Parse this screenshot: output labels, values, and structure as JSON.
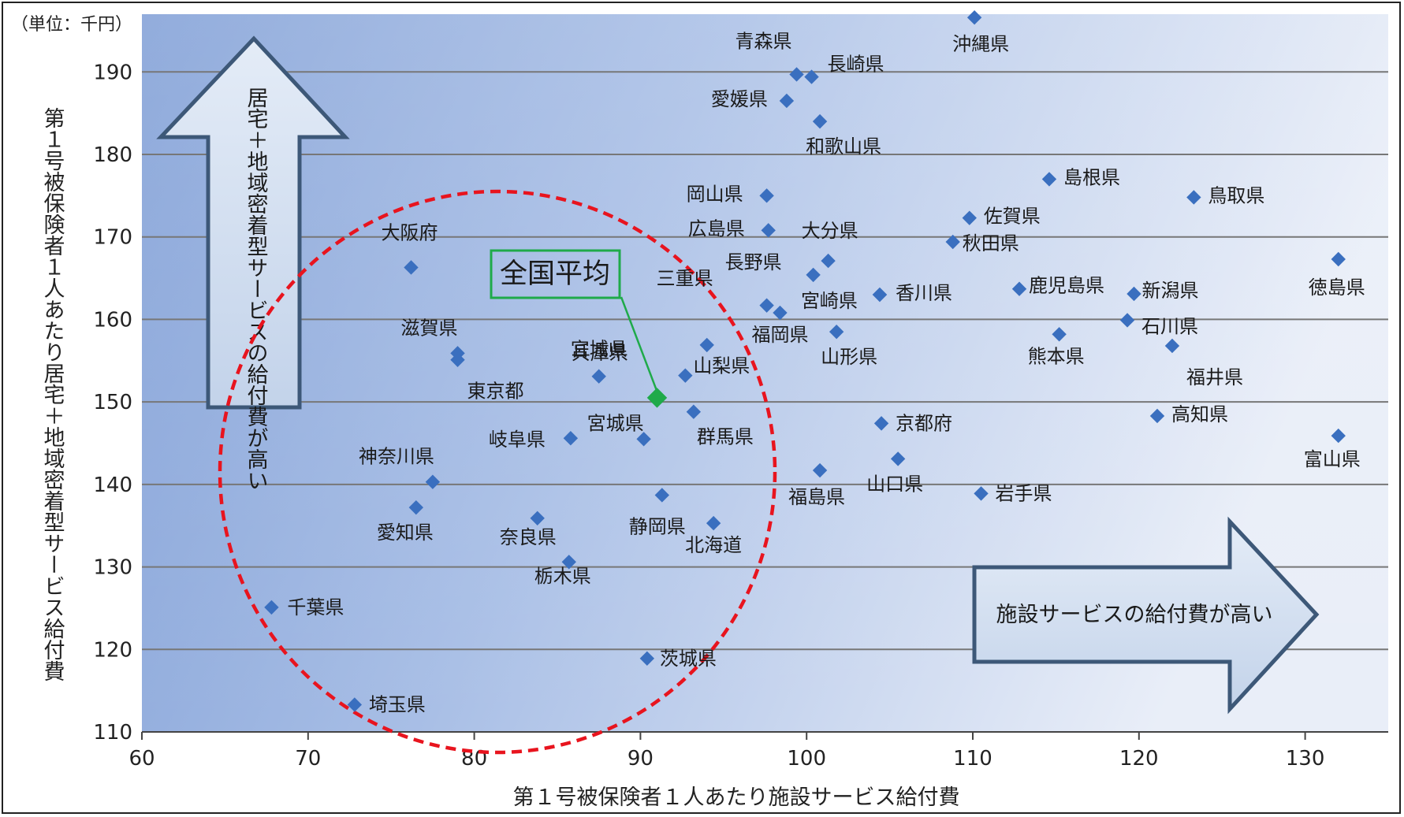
{
  "chart_data": {
    "type": "scatter",
    "title": "",
    "unit_label": "（単位：千円）",
    "xlabel": "第１号被保険者１人あたり施設サービス給付費",
    "ylabel": "第１号被保険者１人あたり居宅＋地域密着型サービス給付費",
    "xlim": [
      60,
      135
    ],
    "ylim": [
      110,
      197
    ],
    "x_ticks": [
      "60",
      "70",
      "80",
      "90",
      "100",
      "110",
      "120",
      "130"
    ],
    "y_ticks": [
      "110",
      "120",
      "130",
      "140",
      "150",
      "160",
      "170",
      "180",
      "190"
    ],
    "grid": "horizontal",
    "up_arrow_label": "居宅＋地域密着型サービスの給付費が高い",
    "right_arrow_label": "施設サービスの給付費が高い",
    "highlight": {
      "label": "全国平均",
      "x": 91,
      "y": 150.5,
      "color": "#1faa4a"
    },
    "marker_color": "#3a6fbf",
    "circle_color": "#e8141e",
    "points": [
      {
        "name": "沖縄県",
        "x": 110.1,
        "y": 196.6
      },
      {
        "name": "青森県",
        "x": 99.4,
        "y": 189.7
      },
      {
        "name": "長崎県",
        "x": 100.3,
        "y": 189.4
      },
      {
        "name": "愛媛県",
        "x": 98.8,
        "y": 186.5
      },
      {
        "name": "和歌山県",
        "x": 100.8,
        "y": 184
      },
      {
        "name": "島根県",
        "x": 114.6,
        "y": 177
      },
      {
        "name": "鳥取県",
        "x": 123.3,
        "y": 174.8
      },
      {
        "name": "岡山県",
        "x": 97.6,
        "y": 175
      },
      {
        "name": "佐賀県",
        "x": 109.8,
        "y": 172.3
      },
      {
        "name": "広島県",
        "x": 97.7,
        "y": 170.8
      },
      {
        "name": "秋田県",
        "x": 108.8,
        "y": 169.4
      },
      {
        "name": "大分県",
        "x": 101.3,
        "y": 167.1
      },
      {
        "name": "徳島県",
        "x": 132,
        "y": 167.3
      },
      {
        "name": "大阪府",
        "x": 76.2,
        "y": 166.3
      },
      {
        "name": "長野県",
        "x": 100.4,
        "y": 165.4
      },
      {
        "name": "鹿児島県",
        "x": 112.8,
        "y": 163.7
      },
      {
        "name": "新潟県",
        "x": 119.7,
        "y": 163.1
      },
      {
        "name": "宮崎県",
        "x": 104.4,
        "y": 163
      },
      {
        "name": "香川県",
        "x": 104.4,
        "y": 163
      },
      {
        "name": "三重県",
        "x": 97.6,
        "y": 161.7
      },
      {
        "name": "福岡県",
        "x": 98.4,
        "y": 160.8
      },
      {
        "name": "石川県",
        "x": 119.3,
        "y": 159.9
      },
      {
        "name": "山形県",
        "x": 101.8,
        "y": 158.5
      },
      {
        "name": "熊本県",
        "x": 115.2,
        "y": 158.2
      },
      {
        "name": "兵庫県",
        "x": 94,
        "y": 156.9
      },
      {
        "name": "福井県",
        "x": 122,
        "y": 156.8
      },
      {
        "name": "滋賀県",
        "x": 79,
        "y": 155.9
      },
      {
        "name": "東京都",
        "x": 79,
        "y": 155.1
      },
      {
        "name": "山梨県",
        "x": 92.7,
        "y": 153.2
      },
      {
        "name": "宮城県",
        "x": 87.5,
        "y": 153.1
      },
      {
        "name": "群馬県",
        "x": 93.2,
        "y": 148.8
      },
      {
        "name": "高知県",
        "x": 121.1,
        "y": 148.3
      },
      {
        "name": "京都府",
        "x": 104.5,
        "y": 147.4
      },
      {
        "name": "富山県",
        "x": 132,
        "y": 145.9
      },
      {
        "name": "岐阜県",
        "x": 85.8,
        "y": 145.6
      },
      {
        "name": "宮城県",
        "x": 90.2,
        "y": 145.5
      },
      {
        "name": "山口県",
        "x": 105.5,
        "y": 143.1
      },
      {
        "name": "福島県",
        "x": 100.8,
        "y": 141.7
      },
      {
        "name": "神奈川県",
        "x": 77.5,
        "y": 140.3
      },
      {
        "name": "岩手県",
        "x": 110.5,
        "y": 138.9
      },
      {
        "name": "静岡県",
        "x": 91.3,
        "y": 138.7
      },
      {
        "name": "愛知県",
        "x": 76.5,
        "y": 137.2
      },
      {
        "name": "奈良県",
        "x": 83.8,
        "y": 135.9
      },
      {
        "name": "北海道",
        "x": 94.4,
        "y": 135.3
      },
      {
        "name": "栃木県",
        "x": 85.7,
        "y": 130.6
      },
      {
        "name": "千葉県",
        "x": 67.8,
        "y": 125.1
      },
      {
        "name": "茨城県",
        "x": 90.4,
        "y": 118.9
      },
      {
        "name": "埼玉県",
        "x": 72.8,
        "y": 113.3
      }
    ]
  }
}
